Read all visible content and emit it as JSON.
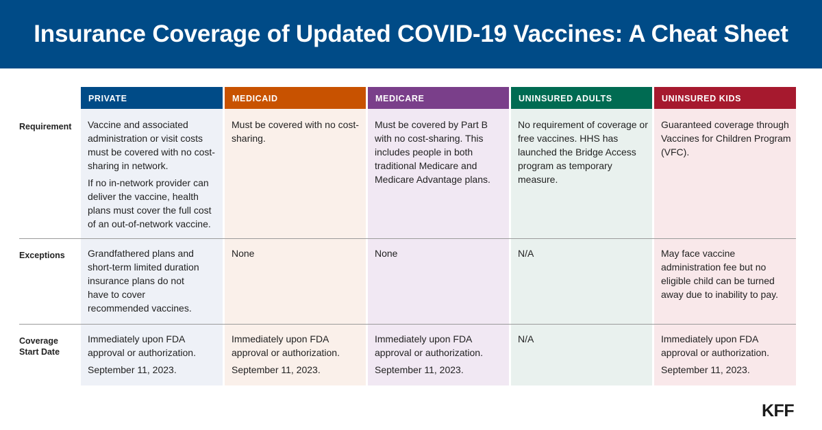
{
  "title": "Insurance Coverage of Updated COVID-19 Vaccines: A Cheat Sheet",
  "logo": "KFF",
  "row_labels": {
    "requirement": "Requirement",
    "exceptions": "Exceptions",
    "coverage_line1": "Coverage",
    "coverage_line2": "Start Date"
  },
  "columns": [
    {
      "header": "PRIVATE",
      "accent": "#004b87",
      "tint": "#eef1f7",
      "requirement": [
        "Vaccine and associated administration or visit costs must be covered with no cost-sharing in network.",
        "If no in-network provider can deliver the vaccine, health plans must cover the full cost of an out-of-network vaccine."
      ],
      "exceptions": "Grandfathered plans and short-term limited duration insurance plans do not have to cover recommended vaccines.",
      "coverage": [
        "Immediately upon FDA approval or authorization.",
        "September 11, 2023."
      ]
    },
    {
      "header": "MEDICAID",
      "accent": "#c85200",
      "tint": "#faf0ea",
      "requirement": [
        "Must be covered with no cost-sharing."
      ],
      "exceptions": "None",
      "coverage": [
        "Immediately upon FDA approval or authorization.",
        "September 11, 2023."
      ]
    },
    {
      "header": "MEDICARE",
      "accent": "#7a3f8a",
      "tint": "#f1e8f3",
      "requirement": [
        "Must be covered by Part B with no cost-sharing. This includes people in both traditional Medicare and Medicare Advantage plans."
      ],
      "exceptions": "None",
      "coverage": [
        "Immediately upon FDA approval or authorization.",
        "September 11, 2023."
      ]
    },
    {
      "header": "UNINSURED ADULTS",
      "accent": "#006b52",
      "tint": "#e9f1ee",
      "requirement": [
        "No requirement of coverage or free vaccines. HHS has launched the Bridge Access program as temporary measure."
      ],
      "exceptions": "N/A",
      "coverage": [
        "N/A"
      ]
    },
    {
      "header": "UNINSURED KIDS",
      "accent": "#a6192e",
      "tint": "#f9e8ea",
      "requirement": [
        "Guaranteed coverage through Vaccines for Children Program (VFC)."
      ],
      "exceptions": "May face vaccine administration fee but no eligible child can be turned away due to inability to pay.",
      "coverage": [
        "Immediately upon FDA approval or authorization.",
        "September 11, 2023."
      ]
    }
  ]
}
